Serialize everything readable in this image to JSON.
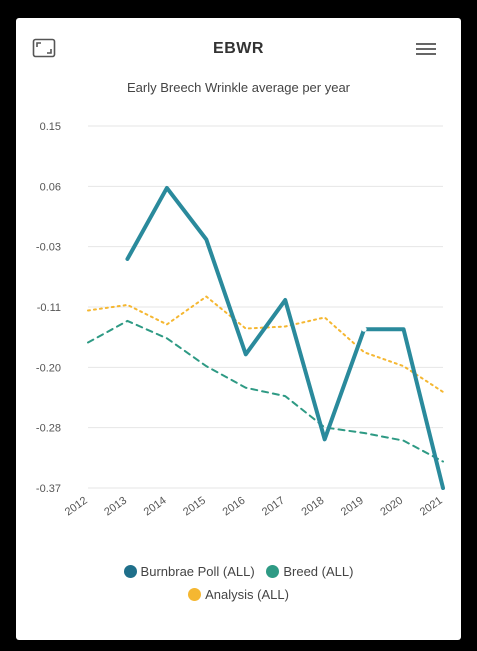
{
  "header": {
    "title": "EBWR"
  },
  "icons": {
    "expand": "expand-icon",
    "menu": "hamburger-menu-icon"
  },
  "chart_data": {
    "type": "line",
    "title": "Early Breech Wrinkle average per year",
    "xlabel": "",
    "ylabel": "",
    "categories": [
      "2012",
      "2013",
      "2014",
      "2015",
      "2016",
      "2017",
      "2018",
      "2019",
      "2020",
      "2021"
    ],
    "y_ticks": [
      "0.15",
      "0.06",
      "-0.03",
      "-0.11",
      "-0.20",
      "-0.28",
      "-0.37"
    ],
    "ylim": [
      -0.37,
      0.15
    ],
    "grid": true,
    "legend_position": "bottom",
    "series": [
      {
        "name": "Burnbrae Poll (ALL)",
        "color": "#2a8a9c",
        "style": "solid",
        "values": [
          null,
          -0.041,
          0.061,
          -0.013,
          -0.178,
          -0.1,
          -0.3,
          -0.142,
          -0.142,
          -0.37
        ]
      },
      {
        "name": "Breed (ALL)",
        "color": "#2e9a84",
        "style": "dashed",
        "values": [
          -0.161,
          -0.13,
          -0.155,
          -0.195,
          -0.226,
          -0.238,
          -0.283,
          -0.291,
          -0.302,
          -0.332
        ]
      },
      {
        "name": "Analysis (ALL)",
        "color": "#f5b731",
        "style": "dotted",
        "values": [
          -0.115,
          -0.107,
          -0.135,
          -0.095,
          -0.141,
          -0.138,
          -0.125,
          -0.175,
          -0.195,
          -0.232
        ]
      }
    ],
    "legend_dots": [
      "#1f6f8a",
      "#2e9a84",
      "#f5b731"
    ]
  }
}
